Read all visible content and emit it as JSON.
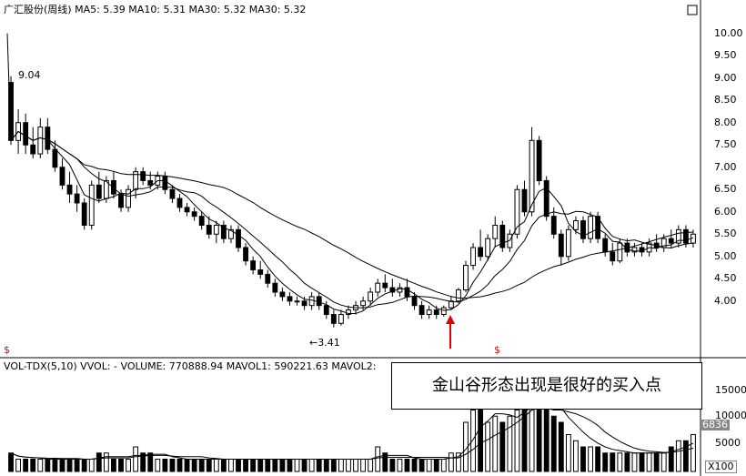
{
  "header": {
    "stock_name": "广汇股份(周线)",
    "ma_text": "MA5: 5.39  MA10: 5.31  MA30: 5.32  MA30: 5.32"
  },
  "price_axis": {
    "ticks": [
      "10.00",
      "9.50",
      "9.00",
      "8.50",
      "8.00",
      "7.50",
      "7.00",
      "6.50",
      "6.00",
      "5.50",
      "5.00",
      "4.50",
      "4.00"
    ]
  },
  "volume_header": {
    "text": "VOL-TDX(5,10)  VVOL: -    VOLUME: 770888.94  MAVOL1: 590221.63  MAVOL2:"
  },
  "volume_axis": {
    "ticks": [
      "15000",
      "10000",
      "5000"
    ],
    "current_value": "6836",
    "unit": "X100"
  },
  "annotations": {
    "high_label": "9.04",
    "low_label": "←3.41",
    "callout": "金山谷形态出现是很好的买入点",
    "marker_left": "$",
    "marker_mid": "$"
  },
  "colors": {
    "up": "#000000",
    "down": "#000000",
    "ma": "#000000",
    "accent": "#e00000"
  },
  "chart_data": {
    "type": "candlestick",
    "title": "广汇股份(周线)",
    "ylim": [
      3.2,
      10.3
    ],
    "candles": [
      [
        8.9,
        9.04,
        7.5,
        7.6
      ],
      [
        7.6,
        8.3,
        7.3,
        8.0
      ],
      [
        8.0,
        8.2,
        7.3,
        7.5
      ],
      [
        7.5,
        7.9,
        7.2,
        7.3
      ],
      [
        7.3,
        8.1,
        7.2,
        7.9
      ],
      [
        7.9,
        8.1,
        7.3,
        7.4
      ],
      [
        7.4,
        7.6,
        6.9,
        7.0
      ],
      [
        7.0,
        7.2,
        6.5,
        6.6
      ],
      [
        6.6,
        6.9,
        6.2,
        6.4
      ],
      [
        6.4,
        6.6,
        6.0,
        6.2
      ],
      [
        6.2,
        6.3,
        5.6,
        5.7
      ],
      [
        5.7,
        6.7,
        5.6,
        6.6
      ],
      [
        6.6,
        6.9,
        6.2,
        6.3
      ],
      [
        6.3,
        6.8,
        6.2,
        6.7
      ],
      [
        6.7,
        6.9,
        6.3,
        6.4
      ],
      [
        6.4,
        6.5,
        6.0,
        6.1
      ],
      [
        6.1,
        6.6,
        6.0,
        6.5
      ],
      [
        6.5,
        7.0,
        6.3,
        6.9
      ],
      [
        6.9,
        7.0,
        6.6,
        6.7
      ],
      [
        6.7,
        6.9,
        6.5,
        6.6
      ],
      [
        6.6,
        6.9,
        6.5,
        6.8
      ],
      [
        6.8,
        6.9,
        6.4,
        6.5
      ],
      [
        6.5,
        6.6,
        6.2,
        6.3
      ],
      [
        6.3,
        6.4,
        6.0,
        6.1
      ],
      [
        6.1,
        6.2,
        5.9,
        6.0
      ],
      [
        6.0,
        6.1,
        5.8,
        5.9
      ],
      [
        5.9,
        6.0,
        5.6,
        5.7
      ],
      [
        5.7,
        5.9,
        5.4,
        5.5
      ],
      [
        5.5,
        5.8,
        5.3,
        5.7
      ],
      [
        5.7,
        5.8,
        5.3,
        5.4
      ],
      [
        5.4,
        5.7,
        5.3,
        5.6
      ],
      [
        5.6,
        5.7,
        5.1,
        5.2
      ],
      [
        5.2,
        5.3,
        4.8,
        4.9
      ],
      [
        4.9,
        5.0,
        4.6,
        4.7
      ],
      [
        4.7,
        4.9,
        4.5,
        4.6
      ],
      [
        4.6,
        4.7,
        4.3,
        4.4
      ],
      [
        4.4,
        4.5,
        4.1,
        4.2
      ],
      [
        4.2,
        4.3,
        4.0,
        4.1
      ],
      [
        4.1,
        4.2,
        3.9,
        4.0
      ],
      [
        4.0,
        4.1,
        3.9,
        4.0
      ],
      [
        4.0,
        4.1,
        3.8,
        3.9
      ],
      [
        3.9,
        4.2,
        3.8,
        4.1
      ],
      [
        4.1,
        4.2,
        3.8,
        3.9
      ],
      [
        3.9,
        4.0,
        3.6,
        3.7
      ],
      [
        3.7,
        3.8,
        3.41,
        3.5
      ],
      [
        3.5,
        3.8,
        3.45,
        3.7
      ],
      [
        3.7,
        3.9,
        3.6,
        3.8
      ],
      [
        3.8,
        4.0,
        3.7,
        3.9
      ],
      [
        3.9,
        4.1,
        3.8,
        4.0
      ],
      [
        4.0,
        4.3,
        3.9,
        4.2
      ],
      [
        4.2,
        4.5,
        4.1,
        4.4
      ],
      [
        4.4,
        4.6,
        4.2,
        4.3
      ],
      [
        4.3,
        4.5,
        4.1,
        4.2
      ],
      [
        4.2,
        4.4,
        4.1,
        4.3
      ],
      [
        4.3,
        4.5,
        4.0,
        4.1
      ],
      [
        4.1,
        4.2,
        3.8,
        3.9
      ],
      [
        3.9,
        4.0,
        3.6,
        3.7
      ],
      [
        3.7,
        3.9,
        3.6,
        3.8
      ],
      [
        3.8,
        3.9,
        3.6,
        3.7
      ],
      [
        3.7,
        3.9,
        3.65,
        3.85
      ],
      [
        3.85,
        4.1,
        3.8,
        4.0
      ],
      [
        4.0,
        4.3,
        3.95,
        4.25
      ],
      [
        4.25,
        4.9,
        4.2,
        4.8
      ],
      [
        4.8,
        5.3,
        4.7,
        5.2
      ],
      [
        5.2,
        5.6,
        4.9,
        5.0
      ],
      [
        5.0,
        5.5,
        4.9,
        5.4
      ],
      [
        5.4,
        5.9,
        5.2,
        5.7
      ],
      [
        5.7,
        5.8,
        5.1,
        5.2
      ],
      [
        5.2,
        5.6,
        5.1,
        5.5
      ],
      [
        5.5,
        6.6,
        5.4,
        6.5
      ],
      [
        6.5,
        6.7,
        5.9,
        6.0
      ],
      [
        6.0,
        7.9,
        5.9,
        7.6
      ],
      [
        7.6,
        7.7,
        6.6,
        6.7
      ],
      [
        6.7,
        6.8,
        5.8,
        5.9
      ],
      [
        5.9,
        6.1,
        5.4,
        5.5
      ],
      [
        5.5,
        5.6,
        4.8,
        5.0
      ],
      [
        5.0,
        5.7,
        4.9,
        5.6
      ],
      [
        5.6,
        5.9,
        5.5,
        5.8
      ],
      [
        5.8,
        5.9,
        5.3,
        5.4
      ],
      [
        5.4,
        6.0,
        5.3,
        5.9
      ],
      [
        5.9,
        6.0,
        5.3,
        5.4
      ],
      [
        5.4,
        5.5,
        5.0,
        5.1
      ],
      [
        5.1,
        5.3,
        4.8,
        4.9
      ],
      [
        4.9,
        5.4,
        4.85,
        5.3
      ],
      [
        5.3,
        5.4,
        5.0,
        5.1
      ],
      [
        5.1,
        5.3,
        5.0,
        5.2
      ],
      [
        5.2,
        5.3,
        5.0,
        5.1
      ],
      [
        5.1,
        5.4,
        5.0,
        5.3
      ],
      [
        5.3,
        5.5,
        5.1,
        5.2
      ],
      [
        5.2,
        5.5,
        5.1,
        5.4
      ],
      [
        5.4,
        5.6,
        5.2,
        5.3
      ],
      [
        5.3,
        5.7,
        5.2,
        5.6
      ],
      [
        5.6,
        5.7,
        5.2,
        5.3
      ],
      [
        5.3,
        5.6,
        5.2,
        5.5
      ]
    ],
    "volume": [
      3,
      2,
      2,
      2,
      2,
      2,
      2,
      2,
      2,
      2,
      2,
      2,
      3,
      3,
      2,
      2,
      2,
      4,
      3,
      3,
      2,
      2,
      2,
      2,
      2,
      2,
      2,
      2,
      2,
      2,
      2,
      2,
      2,
      2,
      2,
      2,
      2,
      2,
      2,
      2,
      2,
      2,
      2,
      2,
      2,
      2,
      2,
      2,
      2,
      2,
      4,
      3,
      2,
      2,
      2,
      2,
      2,
      2,
      2,
      2,
      3,
      3,
      8,
      10,
      12,
      8,
      9,
      8,
      9,
      10,
      12,
      14,
      11,
      10,
      9,
      8,
      6,
      5,
      4,
      4,
      4,
      3,
      3,
      3,
      3,
      3,
      3,
      3,
      3,
      3,
      4,
      5,
      5,
      6
    ]
  }
}
